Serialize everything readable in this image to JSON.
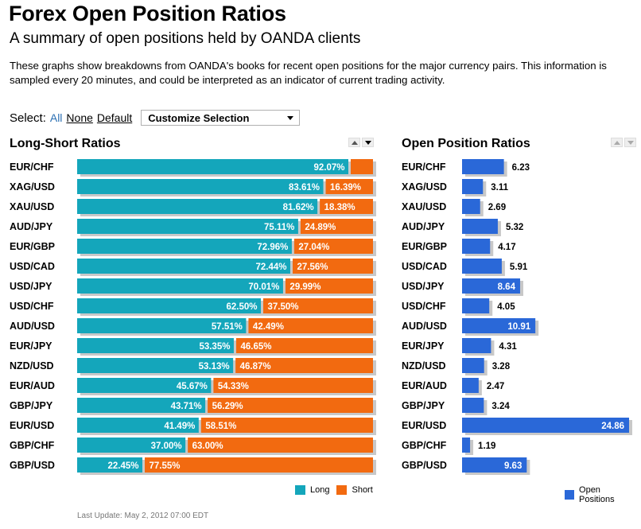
{
  "header": {
    "title": "Forex Open Position Ratios",
    "subtitle": "A summary of open positions held by OANDA clients",
    "description": "These graphs show breakdowns from OANDA's books for recent open positions for the major currency pairs. This information is sampled every 20 minutes, and could be interpreted as an indicator of current trading activity."
  },
  "select": {
    "label": "Select:",
    "all": "All",
    "none": "None",
    "default": "Default",
    "dropdown_value": "Customize Selection"
  },
  "long_short": {
    "title": "Long-Short Ratios",
    "legend_long": "Long",
    "legend_short": "Short"
  },
  "open_positions": {
    "title": "Open Position Ratios",
    "legend": "Open Positions"
  },
  "footer": {
    "last_update": "Last Update: May 2, 2012 07:00 EDT"
  },
  "colors": {
    "long": "#14a6bb",
    "short": "#f26a10",
    "open": "#2a68d8",
    "shadow": "#c8c8c8"
  },
  "chart_data": [
    {
      "type": "bar",
      "stacked": true,
      "orientation": "horizontal",
      "title": "Long-Short Ratios",
      "categories": [
        "EUR/CHF",
        "XAG/USD",
        "XAU/USD",
        "AUD/JPY",
        "EUR/GBP",
        "USD/CAD",
        "USD/JPY",
        "USD/CHF",
        "AUD/USD",
        "EUR/JPY",
        "NZD/USD",
        "EUR/AUD",
        "GBP/JPY",
        "EUR/USD",
        "GBP/CHF",
        "GBP/USD"
      ],
      "series": [
        {
          "name": "Long",
          "values": [
            92.07,
            83.61,
            81.62,
            75.11,
            72.96,
            72.44,
            70.01,
            62.5,
            57.51,
            53.35,
            53.13,
            45.67,
            43.71,
            41.49,
            37.0,
            22.45
          ]
        },
        {
          "name": "Short",
          "values": [
            7.93,
            16.39,
            18.38,
            24.89,
            27.04,
            27.56,
            29.99,
            37.5,
            42.49,
            46.65,
            46.87,
            54.33,
            56.29,
            58.51,
            63.0,
            77.55
          ]
        }
      ],
      "labels": {
        "long": [
          "92.07%",
          "83.61%",
          "81.62%",
          "75.11%",
          "72.96%",
          "72.44%",
          "70.01%",
          "62.50%",
          "57.51%",
          "53.35%",
          "53.13%",
          "45.67%",
          "43.71%",
          "41.49%",
          "37.00%",
          "22.45%"
        ],
        "short": [
          "",
          "16.39%",
          "18.38%",
          "24.89%",
          "27.04%",
          "27.56%",
          "29.99%",
          "37.50%",
          "42.49%",
          "46.65%",
          "46.87%",
          "54.33%",
          "56.29%",
          "58.51%",
          "63.00%",
          "77.55%"
        ]
      },
      "xlim": [
        0,
        100
      ],
      "legend_position": "bottom-right"
    },
    {
      "type": "bar",
      "orientation": "horizontal",
      "title": "Open Position Ratios",
      "categories": [
        "EUR/CHF",
        "XAG/USD",
        "XAU/USD",
        "AUD/JPY",
        "EUR/GBP",
        "USD/CAD",
        "USD/JPY",
        "USD/CHF",
        "AUD/USD",
        "EUR/JPY",
        "NZD/USD",
        "EUR/AUD",
        "GBP/JPY",
        "EUR/USD",
        "GBP/CHF",
        "GBP/USD"
      ],
      "series": [
        {
          "name": "Open Positions",
          "values": [
            6.23,
            3.11,
            2.69,
            5.32,
            4.17,
            5.91,
            8.64,
            4.05,
            10.91,
            4.31,
            3.28,
            2.47,
            3.24,
            24.86,
            1.19,
            9.63
          ]
        }
      ],
      "labels": [
        "6.23",
        "3.11",
        "2.69",
        "5.32",
        "4.17",
        "5.91",
        "8.64",
        "4.05",
        "10.91",
        "4.31",
        "3.28",
        "2.47",
        "3.24",
        "24.86",
        "1.19",
        "9.63"
      ],
      "xlim": [
        0,
        24.86
      ],
      "legend_position": "bottom-right"
    }
  ]
}
